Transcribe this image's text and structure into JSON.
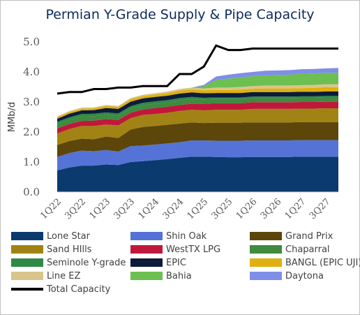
{
  "title": "Permian Y-Grade Supply & Pipe Capacity",
  "chart_data": {
    "type": "area",
    "title": "Permian Y-Grade Supply & Pipe Capacity",
    "ylabel": "MMb/d",
    "xlabel": "",
    "ylim": [
      0,
      5.0
    ],
    "yticks": [
      "0.0",
      "1.0",
      "2.0",
      "3.0",
      "4.0",
      "5.0"
    ],
    "grid": false,
    "legend_position": "bottom",
    "x": [
      "1Q22",
      "2Q22",
      "3Q22",
      "4Q22",
      "1Q23",
      "2Q23",
      "3Q23",
      "4Q23",
      "1Q24",
      "2Q24",
      "3Q24",
      "4Q24",
      "1Q25",
      "2Q25",
      "3Q25",
      "4Q25",
      "1Q26",
      "2Q26",
      "3Q26",
      "4Q26",
      "1Q27",
      "2Q27",
      "3Q27",
      "4Q27"
    ],
    "x_tick_labels": [
      "1Q22",
      "3Q22",
      "1Q23",
      "3Q23",
      "1Q24",
      "3Q24",
      "1Q25",
      "3Q25",
      "1Q26",
      "3Q26",
      "1Q27",
      "3Q27"
    ],
    "series": [
      {
        "name": "Lone Star",
        "color": "#0b3a6e",
        "values": [
          0.72,
          0.82,
          0.88,
          0.88,
          0.92,
          0.9,
          1.0,
          1.03,
          1.06,
          1.1,
          1.14,
          1.18,
          1.18,
          1.17,
          1.16,
          1.16,
          1.17,
          1.17,
          1.17,
          1.17,
          1.18,
          1.18,
          1.18,
          1.18
        ]
      },
      {
        "name": "Shin Oak",
        "color": "#5573d6",
        "values": [
          0.45,
          0.48,
          0.5,
          0.48,
          0.48,
          0.45,
          0.53,
          0.52,
          0.52,
          0.52,
          0.52,
          0.54,
          0.54,
          0.54,
          0.55,
          0.55,
          0.55,
          0.55,
          0.55,
          0.55,
          0.55,
          0.55,
          0.55,
          0.55
        ]
      },
      {
        "name": "Grand Prix",
        "color": "#5c4609",
        "values": [
          0.4,
          0.4,
          0.4,
          0.4,
          0.45,
          0.45,
          0.55,
          0.62,
          0.62,
          0.62,
          0.62,
          0.6,
          0.58,
          0.6,
          0.6,
          0.6,
          0.6,
          0.6,
          0.6,
          0.6,
          0.6,
          0.6,
          0.6,
          0.6
        ]
      },
      {
        "name": "Sand HIlls",
        "color": "#a08314",
        "values": [
          0.38,
          0.4,
          0.42,
          0.44,
          0.4,
          0.42,
          0.38,
          0.4,
          0.4,
          0.4,
          0.42,
          0.42,
          0.42,
          0.43,
          0.43,
          0.43,
          0.45,
          0.45,
          0.45,
          0.45,
          0.45,
          0.45,
          0.46,
          0.46
        ]
      },
      {
        "name": "WestTX LPG",
        "color": "#c0183b",
        "values": [
          0.17,
          0.17,
          0.17,
          0.18,
          0.18,
          0.18,
          0.18,
          0.18,
          0.2,
          0.2,
          0.2,
          0.2,
          0.22,
          0.22,
          0.22,
          0.22,
          0.22,
          0.22,
          0.22,
          0.22,
          0.22,
          0.22,
          0.22,
          0.22
        ]
      },
      {
        "name": "Chaparral",
        "color": "#3f8a3f",
        "values": [
          0.14,
          0.14,
          0.15,
          0.15,
          0.14,
          0.14,
          0.14,
          0.14,
          0.14,
          0.14,
          0.15,
          0.15,
          0.15,
          0.14,
          0.14,
          0.14,
          0.14,
          0.14,
          0.14,
          0.14,
          0.14,
          0.14,
          0.14,
          0.14
        ]
      },
      {
        "name": "Seminole Y-grade",
        "color": "#2e8a46",
        "values": [
          0.08,
          0.08,
          0.08,
          0.08,
          0.08,
          0.08,
          0.08,
          0.08,
          0.08,
          0.08,
          0.08,
          0.08,
          0.05,
          0.05,
          0.05,
          0.05,
          0.05,
          0.05,
          0.05,
          0.05,
          0.05,
          0.05,
          0.05,
          0.05
        ]
      },
      {
        "name": "EPIC",
        "color": "#0c1c3a",
        "values": [
          0.1,
          0.12,
          0.12,
          0.12,
          0.15,
          0.15,
          0.15,
          0.15,
          0.15,
          0.15,
          0.15,
          0.15,
          0.15,
          0.15,
          0.15,
          0.15,
          0.15,
          0.15,
          0.15,
          0.15,
          0.15,
          0.15,
          0.15,
          0.15
        ]
      },
      {
        "name": "BANGL (EPIC UJI)",
        "color": "#e0b010",
        "values": [
          0.05,
          0.06,
          0.06,
          0.06,
          0.07,
          0.07,
          0.08,
          0.08,
          0.08,
          0.09,
          0.1,
          0.1,
          0.1,
          0.1,
          0.1,
          0.11,
          0.11,
          0.12,
          0.12,
          0.12,
          0.12,
          0.13,
          0.14,
          0.14
        ]
      },
      {
        "name": "Line EZ",
        "color": "#d9c58a",
        "values": [
          0.03,
          0.03,
          0.03,
          0.03,
          0.03,
          0.03,
          0.04,
          0.04,
          0.04,
          0.05,
          0.05,
          0.06,
          0.06,
          0.08,
          0.08,
          0.09,
          0.09,
          0.1,
          0.1,
          0.1,
          0.1,
          0.1,
          0.1,
          0.1
        ]
      },
      {
        "name": "Bahia",
        "color": "#6cbf50",
        "values": [
          0,
          0,
          0,
          0,
          0,
          0,
          0,
          0,
          0,
          0,
          0,
          0,
          0.08,
          0.25,
          0.3,
          0.32,
          0.33,
          0.34,
          0.35,
          0.36,
          0.38,
          0.38,
          0.38,
          0.38
        ]
      },
      {
        "name": "Daytona",
        "color": "#7f8ee6",
        "values": [
          0,
          0,
          0,
          0,
          0,
          0,
          0,
          0,
          0,
          0,
          0,
          0,
          0.04,
          0.12,
          0.13,
          0.14,
          0.14,
          0.15,
          0.15,
          0.15,
          0.15,
          0.15,
          0.15,
          0.16
        ]
      }
    ],
    "total_capacity": {
      "name": "Total Capacity",
      "color": "#000000",
      "values": [
        3.28,
        3.33,
        3.33,
        3.43,
        3.43,
        3.48,
        3.48,
        3.53,
        3.53,
        3.53,
        3.93,
        3.93,
        4.18,
        4.88,
        4.73,
        4.73,
        4.78,
        4.78,
        4.78,
        4.78,
        4.78,
        4.78,
        4.78,
        4.78
      ]
    }
  },
  "legend": [
    {
      "label": "Lone Star",
      "color": "#0b3a6e",
      "kind": "area"
    },
    {
      "label": "Shin Oak",
      "color": "#5573d6",
      "kind": "area"
    },
    {
      "label": "Grand Prix",
      "color": "#5c4609",
      "kind": "area"
    },
    {
      "label": "Sand HIlls",
      "color": "#a08314",
      "kind": "area"
    },
    {
      "label": "WestTX LPG",
      "color": "#c0183b",
      "kind": "area"
    },
    {
      "label": "Chaparral",
      "color": "#3f8a3f",
      "kind": "area"
    },
    {
      "label": "Seminole Y-grade",
      "color": "#2e8a46",
      "kind": "area"
    },
    {
      "label": "EPIC",
      "color": "#0c1c3a",
      "kind": "area"
    },
    {
      "label": "BANGL (EPIC UJI)",
      "color": "#e0b010",
      "kind": "area"
    },
    {
      "label": "Line EZ",
      "color": "#d9c58a",
      "kind": "area"
    },
    {
      "label": "Bahia",
      "color": "#6cbf50",
      "kind": "area"
    },
    {
      "label": "Daytona",
      "color": "#7f8ee6",
      "kind": "area"
    },
    {
      "label": "Total Capacity",
      "color": "#000000",
      "kind": "line"
    }
  ]
}
